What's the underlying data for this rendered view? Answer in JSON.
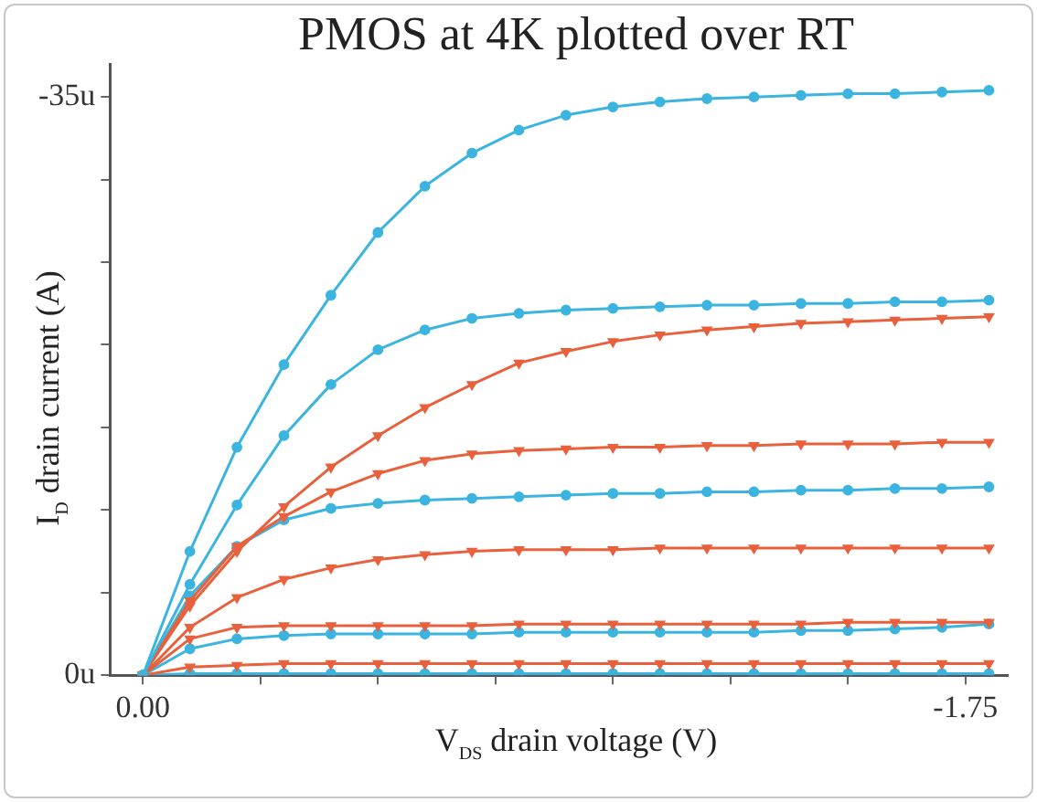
{
  "chart_data": {
    "type": "line",
    "title": "PMOS at 4K plotted over RT",
    "xlabel": "V$_{DS}$ drain voltage (V)",
    "ylabel": "I$_{D}$ drain current (A)",
    "x": [
      0,
      -0.1,
      -0.2,
      -0.3,
      -0.4,
      -0.5,
      -0.6,
      -0.7,
      -0.8,
      -0.9,
      -1.0,
      -1.1,
      -1.2,
      -1.3,
      -1.4,
      -1.5,
      -1.6,
      -1.7,
      -1.8
    ],
    "series": [
      {
        "color": "#3bb4e0",
        "marker": "circle",
        "values": [
          0,
          -7.5,
          -13.8,
          -18.8,
          -23,
          -26.8,
          -29.6,
          -31.6,
          -33,
          -33.9,
          -34.4,
          -34.7,
          -34.9,
          -35,
          -35.1,
          -35.2,
          -35.2,
          -35.3,
          -35.4
        ]
      },
      {
        "color": "#3bb4e0",
        "marker": "circle",
        "values": [
          0,
          -5.5,
          -10.3,
          -14.5,
          -17.6,
          -19.7,
          -20.9,
          -21.6,
          -21.9,
          -22.1,
          -22.2,
          -22.3,
          -22.4,
          -22.4,
          -22.5,
          -22.5,
          -22.6,
          -22.6,
          -22.7
        ]
      },
      {
        "color": "#e8603c",
        "marker": "triangle",
        "values": [
          0,
          -4.2,
          -7.5,
          -10.2,
          -12.6,
          -14.5,
          -16.2,
          -17.6,
          -18.9,
          -19.6,
          -20.2,
          -20.6,
          -20.9,
          -21.1,
          -21.3,
          -21.4,
          -21.5,
          -21.6,
          -21.7
        ]
      },
      {
        "color": "#e8603c",
        "marker": "triangle",
        "values": [
          0,
          -4.5,
          -7.8,
          -9.6,
          -11.1,
          -12.2,
          -13,
          -13.4,
          -13.6,
          -13.7,
          -13.8,
          -13.8,
          -13.9,
          -13.9,
          -14,
          -14,
          -14,
          -14.1,
          -14.1
        ]
      },
      {
        "color": "#3bb4e0",
        "marker": "circle",
        "values": [
          0,
          -4.8,
          -7.8,
          -9.4,
          -10.1,
          -10.4,
          -10.6,
          -10.7,
          -10.8,
          -10.9,
          -11,
          -11,
          -11.1,
          -11.1,
          -11.2,
          -11.2,
          -11.3,
          -11.3,
          -11.4
        ]
      },
      {
        "color": "#e8603c",
        "marker": "triangle",
        "values": [
          0,
          -2.9,
          -4.7,
          -5.8,
          -6.5,
          -7,
          -7.3,
          -7.5,
          -7.6,
          -7.6,
          -7.6,
          -7.7,
          -7.7,
          -7.7,
          -7.7,
          -7.7,
          -7.7,
          -7.7,
          -7.7
        ]
      },
      {
        "color": "#e8603c",
        "marker": "triangle",
        "values": [
          0,
          -2.2,
          -2.9,
          -3,
          -3,
          -3,
          -3,
          -3,
          -3.1,
          -3.1,
          -3.1,
          -3.1,
          -3.1,
          -3.1,
          -3.1,
          -3.2,
          -3.2,
          -3.2,
          -3.2
        ]
      },
      {
        "color": "#3bb4e0",
        "marker": "circle",
        "values": [
          0,
          -1.6,
          -2.2,
          -2.4,
          -2.5,
          -2.5,
          -2.5,
          -2.5,
          -2.6,
          -2.6,
          -2.6,
          -2.6,
          -2.6,
          -2.6,
          -2.7,
          -2.7,
          -2.8,
          -2.9,
          -3.1
        ]
      },
      {
        "color": "#e8603c",
        "marker": "triangle",
        "values": [
          0,
          -0.5,
          -0.6,
          -0.7,
          -0.7,
          -0.7,
          -0.7,
          -0.7,
          -0.7,
          -0.7,
          -0.7,
          -0.7,
          -0.7,
          -0.7,
          -0.7,
          -0.7,
          -0.7,
          -0.7,
          -0.7
        ]
      },
      {
        "color": "#3bb4e0",
        "marker": "circle",
        "values": [
          0,
          -0.1,
          -0.1,
          -0.1,
          -0.1,
          -0.1,
          -0.1,
          -0.1,
          -0.1,
          -0.1,
          -0.1,
          -0.1,
          -0.1,
          -0.1,
          -0.1,
          -0.1,
          -0.1,
          -0.1,
          -0.1
        ]
      }
    ],
    "xlim": [
      0.07,
      -1.84
    ],
    "xticks": [
      {
        "value": 0,
        "label": "0.00"
      },
      {
        "value": -0.25,
        "label": null
      },
      {
        "value": -0.5,
        "label": null
      },
      {
        "value": -0.75,
        "label": null
      },
      {
        "value": -1,
        "label": null
      },
      {
        "value": -1.25,
        "label": null
      },
      {
        "value": -1.5,
        "label": null
      },
      {
        "value": -1.75,
        "label": "-1.75"
      }
    ],
    "ylim": [
      0,
      -37
    ],
    "yticks": [
      {
        "value": -35,
        "label": "-35u"
      },
      {
        "value": -30,
        "label": null
      },
      {
        "value": -25,
        "label": null
      },
      {
        "value": -20,
        "label": null
      },
      {
        "value": -15,
        "label": null
      },
      {
        "value": -10,
        "label": null
      },
      {
        "value": -5,
        "label": null
      },
      {
        "value": 0,
        "label": "0u"
      }
    ],
    "grid": false,
    "legend": false,
    "line_style": "solid"
  }
}
